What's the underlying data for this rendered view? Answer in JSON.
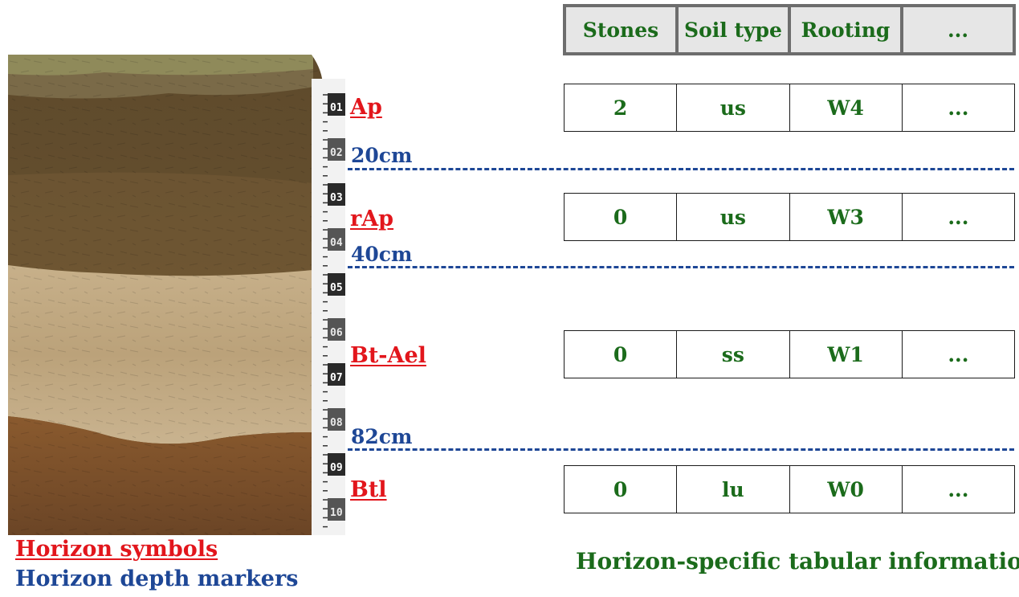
{
  "colors": {
    "horizon_symbol": "#e2161c",
    "depth_marker": "#1e4796",
    "table_text": "#1b6b1b",
    "header_background": "#e6e6e6",
    "header_border": "#6d6d6d"
  },
  "photo": {
    "ruler_labels": [
      "01",
      "02",
      "03",
      "04",
      "05",
      "06",
      "07",
      "08",
      "09",
      "10"
    ]
  },
  "horizons": [
    {
      "symbol": "Ap"
    },
    {
      "symbol": "rAp"
    },
    {
      "symbol": "Bt-Ael"
    },
    {
      "symbol": "Btl"
    }
  ],
  "depth_markers": [
    {
      "label": "20cm"
    },
    {
      "label": "40cm"
    },
    {
      "label": "82cm"
    }
  ],
  "table": {
    "headers": [
      "Stones",
      "Soil type",
      "Rooting",
      "..."
    ],
    "rows": [
      [
        "2",
        "us",
        "W4",
        "..."
      ],
      [
        "0",
        "us",
        "W3",
        "..."
      ],
      [
        "0",
        "ss",
        "W1",
        "..."
      ],
      [
        "0",
        "lu",
        "W0",
        "..."
      ]
    ]
  },
  "legend": {
    "horizon_symbols": "Horizon symbols",
    "horizon_depth_markers": "Horizon depth markers"
  },
  "caption": "Horizon-specific tabular information"
}
